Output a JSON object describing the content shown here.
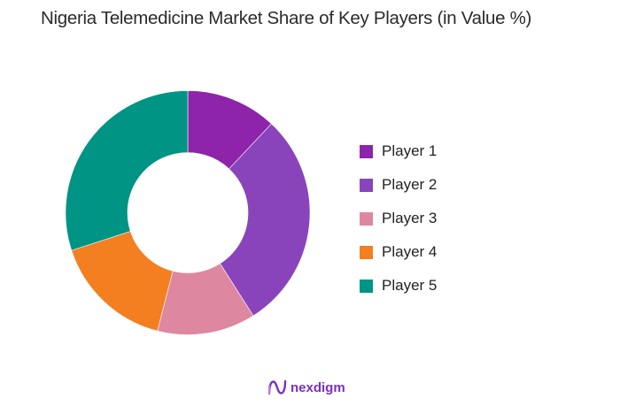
{
  "title": "Nigeria Telemedicine Market Share of Key Players (in Value %)",
  "brand": {
    "name": "nexdigm",
    "icon": "nexdigm-logo-icon"
  },
  "chart_data": {
    "type": "pie",
    "subtype": "donut",
    "title": "Nigeria Telemedicine Market Share of Key Players (in Value %)",
    "categories": [
      "Player 1",
      "Player 2",
      "Player 3",
      "Player 4",
      "Player 5"
    ],
    "values": [
      12,
      29,
      13,
      16,
      30
    ],
    "unit": "%",
    "colors": [
      "#8e24aa",
      "#8a44bb",
      "#de87a0",
      "#f37f21",
      "#009485"
    ],
    "start_angle": "12 o'clock, clockwise",
    "legend_position": "right",
    "data_labels": false
  },
  "legend": {
    "items": [
      {
        "label": "Player 1",
        "color": "#8e24aa"
      },
      {
        "label": "Player 2",
        "color": "#8a44bb"
      },
      {
        "label": "Player 3",
        "color": "#de87a0"
      },
      {
        "label": "Player 4",
        "color": "#f37f21"
      },
      {
        "label": "Player 5",
        "color": "#009485"
      }
    ]
  }
}
